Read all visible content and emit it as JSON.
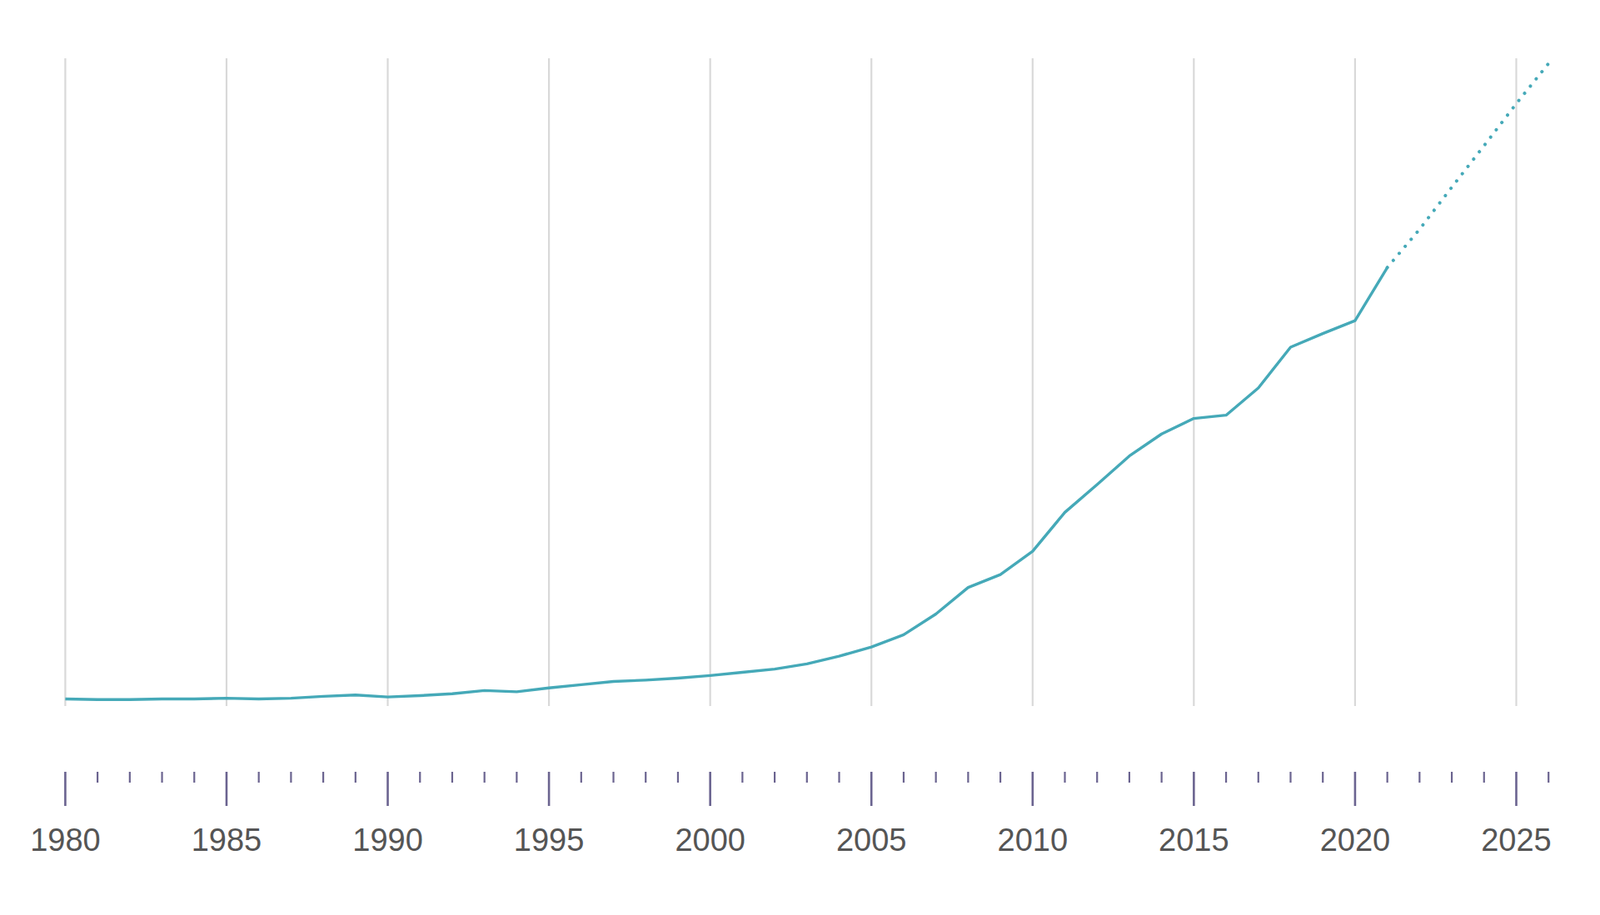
{
  "chart_data": {
    "type": "line",
    "x": [
      1980,
      1981,
      1982,
      1983,
      1984,
      1985,
      1986,
      1987,
      1988,
      1989,
      1990,
      1991,
      1992,
      1993,
      1994,
      1995,
      1996,
      1997,
      1998,
      1999,
      2000,
      2001,
      2002,
      2003,
      2004,
      2005,
      2006,
      2007,
      2008,
      2009,
      2010,
      2011,
      2012,
      2013,
      2014,
      2015,
      2016,
      2017,
      2018,
      2019,
      2020,
      2021,
      2022,
      2023,
      2024,
      2025,
      2026
    ],
    "series": [
      {
        "color": "#45a9b8",
        "line_style": "solid",
        "values": [
          1.1,
          1.0,
          1.0,
          1.1,
          1.1,
          1.2,
          1.1,
          1.2,
          1.5,
          1.7,
          1.4,
          1.6,
          1.9,
          2.4,
          2.2,
          2.8,
          3.3,
          3.8,
          4.0,
          4.3,
          4.7,
          5.2,
          5.7,
          6.5,
          7.7,
          9.1,
          11.0,
          14.2,
          18.3,
          20.3,
          23.9,
          29.9,
          34.2,
          38.6,
          42.0,
          44.4,
          44.9,
          49.1,
          55.4,
          57.5,
          59.5,
          67.7,
          null,
          null,
          null,
          null,
          null
        ]
      },
      {
        "color": "#45a9b8",
        "line_style": "dotted",
        "values": [
          null,
          null,
          null,
          null,
          null,
          null,
          null,
          null,
          null,
          null,
          null,
          null,
          null,
          null,
          null,
          null,
          null,
          null,
          null,
          null,
          null,
          null,
          null,
          null,
          null,
          null,
          null,
          null,
          null,
          null,
          null,
          null,
          null,
          null,
          null,
          null,
          null,
          null,
          null,
          null,
          null,
          67.7,
          73.6,
          80.1,
          86.5,
          93.0,
          99.2
        ]
      }
    ],
    "xlim": [
      1980,
      2026
    ],
    "xticks": [
      1980,
      1985,
      1990,
      1995,
      2000,
      2005,
      2010,
      2015,
      2020,
      2025
    ],
    "ylim": [
      0,
      100
    ],
    "grid": true,
    "tick_labels": "x"
  }
}
